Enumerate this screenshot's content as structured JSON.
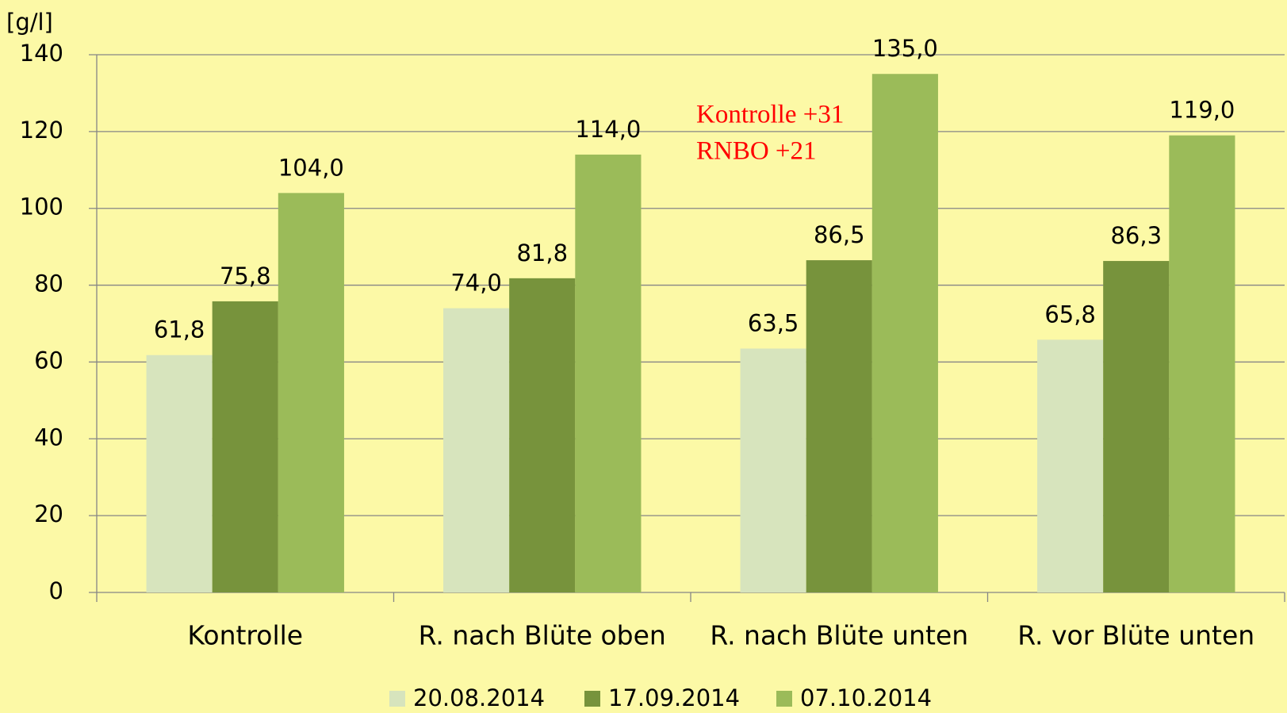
{
  "chart_data": {
    "type": "bar",
    "y_label": "[g/l]",
    "categories": [
      "Kontrolle",
      "R. nach Blüte oben",
      "R. nach Blüte unten",
      "R. vor Blüte unten"
    ],
    "series": [
      {
        "name": "20.08.2014",
        "color": "#d7e4bd",
        "values": [
          61.8,
          74.0,
          63.5,
          65.8
        ],
        "value_labels": [
          "61,8",
          "74,0",
          "63,5",
          "65,8"
        ]
      },
      {
        "name": "17.09.2014",
        "color": "#77933c",
        "values": [
          75.8,
          81.8,
          86.5,
          86.3
        ],
        "value_labels": [
          "75,8",
          "81,8",
          "86,5",
          "86,3"
        ]
      },
      {
        "name": "07.10.2014",
        "color": "#9bbb59",
        "values": [
          104.0,
          114.0,
          135.0,
          119.0
        ],
        "value_labels": [
          "104,0",
          "114,0",
          "135,0",
          "119,0"
        ]
      }
    ],
    "annotations": [
      "Kontrolle +31",
      "RNBO +21"
    ],
    "ylim": [
      0,
      140
    ],
    "yticks": [
      0,
      20,
      40,
      60,
      80,
      100,
      120,
      140
    ],
    "grid": true,
    "legend": "bottom"
  }
}
